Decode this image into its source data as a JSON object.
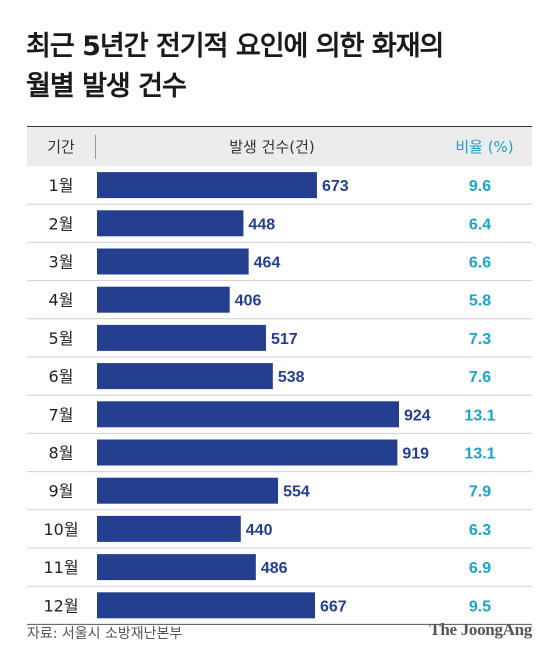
{
  "title_lines": [
    "최근 5년간 전기적 요인에 의한 화재의",
    "월별 발생 건수"
  ],
  "header": {
    "period": "기간",
    "count": "발생 건수(건)",
    "ratio": "비율 (%)"
  },
  "source": "자료: 서울시 소방재난본부",
  "brand": "The JoongAng",
  "colors": {
    "bar": "#243f8f",
    "value_text": "#243f8f",
    "ratio_text": "#1aa5c9",
    "divider": "#cfcfcf"
  },
  "chart_data": {
    "type": "bar",
    "orientation": "horizontal",
    "categories": [
      "1월",
      "2월",
      "3월",
      "4월",
      "5월",
      "6월",
      "7월",
      "8월",
      "9월",
      "10월",
      "11월",
      "12월"
    ],
    "series": [
      {
        "name": "발생 건수(건)",
        "values": [
          673,
          448,
          464,
          406,
          517,
          538,
          924,
          919,
          554,
          440,
          486,
          667
        ]
      },
      {
        "name": "비율 (%)",
        "values": [
          9.6,
          6.4,
          6.6,
          5.8,
          7.3,
          7.6,
          13.1,
          13.1,
          7.9,
          6.3,
          6.9,
          9.5
        ]
      }
    ],
    "ratio_labels": [
      "9.6",
      "6.4",
      "6.6",
      "5.8",
      "7.3",
      "7.6",
      "13.1",
      "13.1",
      "7.9",
      "6.3",
      "6.9",
      "9.5"
    ],
    "xlim": [
      0,
      924
    ],
    "grid": false,
    "legend": "none"
  }
}
